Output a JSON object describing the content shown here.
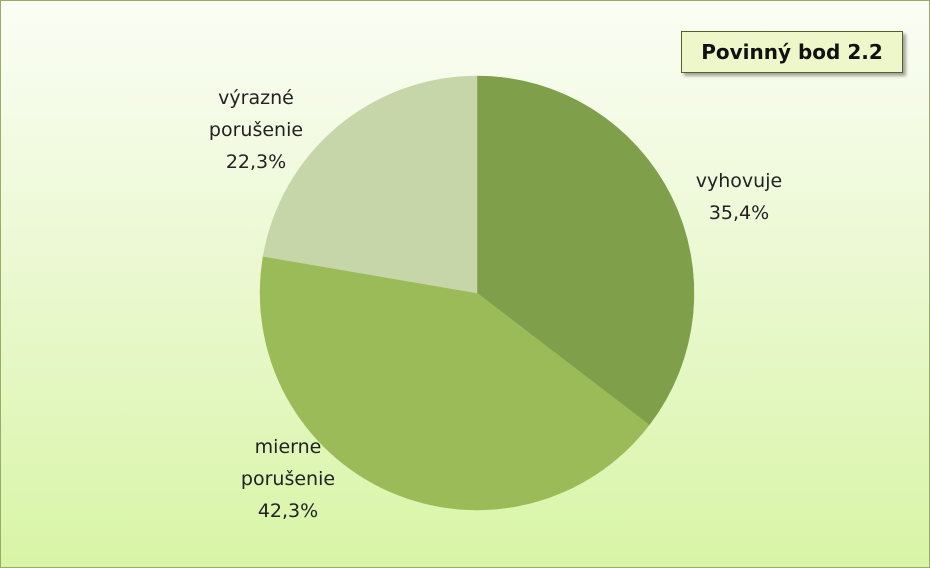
{
  "chart_data": {
    "type": "pie",
    "title": "Povinný bod 2.2",
    "categories": [
      "vyhovuje",
      "mierne porušenie",
      "výrazné porušenie"
    ],
    "values": [
      35.4,
      42.3,
      22.3
    ],
    "value_labels": [
      "35,4%",
      "42,3%",
      "22,3%"
    ],
    "colors": [
      "#7f9f4b",
      "#9bbb59",
      "#c7d6a9"
    ]
  }
}
